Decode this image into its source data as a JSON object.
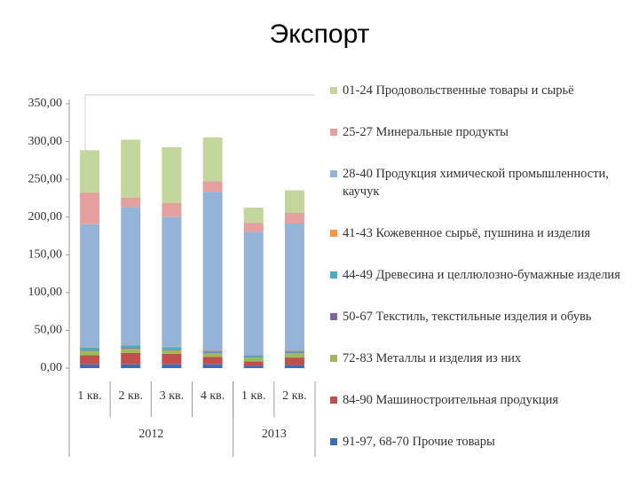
{
  "chart_data": {
    "type": "stacked_bar",
    "title": "Экспорт",
    "categories": [
      "1 кв.",
      "2 кв.",
      "3 кв.",
      "4 кв.",
      "1 кв.",
      "2 кв."
    ],
    "category_groups": [
      {
        "label": "2012",
        "count": 4
      },
      {
        "label": "2013",
        "count": 2
      }
    ],
    "ylim": [
      0,
      350
    ],
    "yticks": [
      {
        "value": 0,
        "label": "0,00"
      },
      {
        "value": 50,
        "label": "50,00"
      },
      {
        "value": 100,
        "label": "100,00"
      },
      {
        "value": 150,
        "label": "150,00"
      },
      {
        "value": 200,
        "label": "200,00"
      },
      {
        "value": 250,
        "label": "250,00"
      },
      {
        "value": 300,
        "label": "300,00"
      },
      {
        "value": 350,
        "label": "350,00"
      }
    ],
    "grid": false,
    "legend": "right",
    "series": [
      {
        "name": "91-97, 68-70 Прочие товары",
        "color": "#3d6eb5",
        "values": [
          5,
          5,
          5,
          5,
          3,
          4
        ]
      },
      {
        "name": "84-90 Машиностроительная продукция",
        "color": "#c0504d",
        "values": [
          12,
          15,
          14,
          10,
          6,
          10
        ]
      },
      {
        "name": "72-83 Металлы и изделия из них",
        "color": "#9bbb59",
        "values": [
          6,
          6,
          5,
          5,
          5,
          6
        ]
      },
      {
        "name": "50-67 Текстиль, текстильные изделия и обувь",
        "color": "#8064a2",
        "values": [
          1,
          1,
          1,
          1,
          1,
          1
        ]
      },
      {
        "name": "44-49 Древесина и целлюлозно-бумажные изделия",
        "color": "#4bacc6",
        "values": [
          3,
          3,
          3,
          2,
          2,
          2
        ]
      },
      {
        "name": "41-43 Кожевенное сырьё, пушнина и изделия",
        "color": "#f79646",
        "values": [
          0.5,
          0.5,
          0.5,
          0.5,
          0.5,
          0.5
        ]
      },
      {
        "name": "28-40 Продукция химической промышленности, каучук",
        "color": "#95b3d7",
        "values": [
          163,
          183,
          172,
          210,
          163,
          168
        ]
      },
      {
        "name": "25-27 Минеральные продукты",
        "color": "#e3a09e",
        "values": [
          42,
          12,
          18,
          14,
          12,
          14
        ]
      },
      {
        "name": "01-24 Продовольственные товары и сырьё",
        "color": "#c3d69b",
        "values": [
          56,
          77,
          74,
          58,
          20,
          30
        ]
      }
    ]
  }
}
